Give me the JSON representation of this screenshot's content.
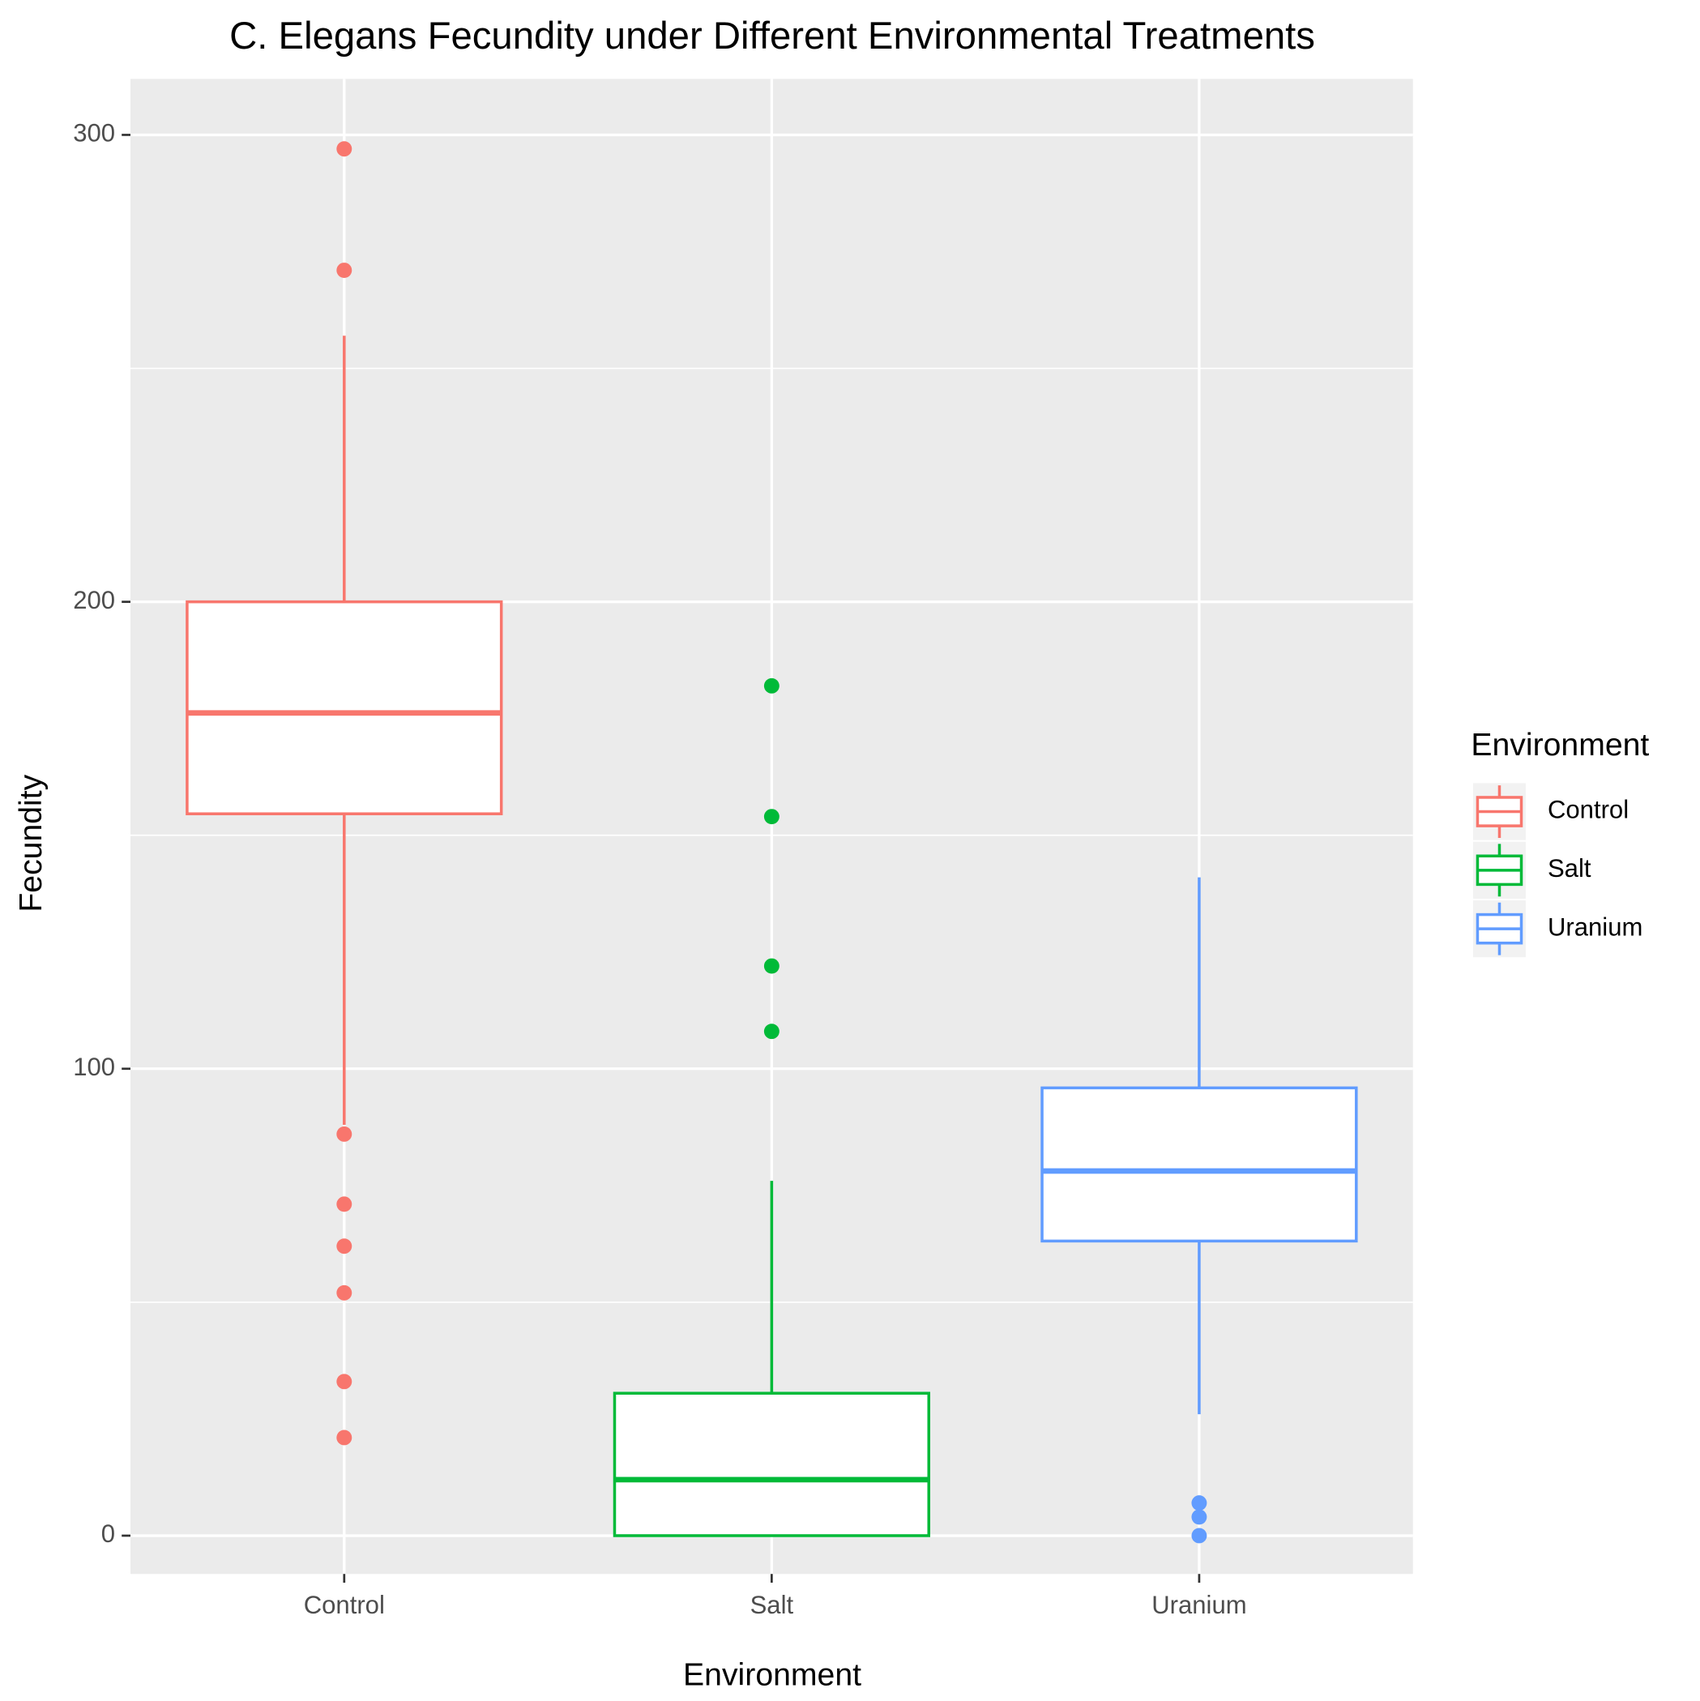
{
  "chart_data": {
    "type": "box",
    "title": "C. Elegans Fecundity under Different Environmental Treatments",
    "x_label": "Environment",
    "y_label": "Fecundity",
    "legend_title": "Environment",
    "legend_position": "right",
    "categories": [
      "Control",
      "Salt",
      "Uranium"
    ],
    "ylim": [
      -8.2,
      312
    ],
    "yticks": [
      0,
      100,
      200,
      300
    ],
    "minor_yticks": [
      50,
      150,
      250
    ],
    "grid": true,
    "series": [
      {
        "name": "Control",
        "color": "#F8766D",
        "whisker_low": 88,
        "q1": 154.6,
        "median": 176.2,
        "q3": 200,
        "whisker_high": 257,
        "outliers": [
          297,
          271,
          86,
          71,
          62,
          52,
          33,
          21
        ]
      },
      {
        "name": "Salt",
        "color": "#00BA38",
        "whisker_low": 0,
        "q1": 0,
        "median": 12,
        "q3": 30.5,
        "whisker_high": 76,
        "outliers": [
          182,
          154,
          122,
          108
        ]
      },
      {
        "name": "Uranium",
        "color": "#619CFF",
        "whisker_low": 26,
        "q1": 63.1,
        "median": 78.1,
        "q3": 95.9,
        "whisker_high": 141,
        "outliers": [
          7,
          4,
          0
        ]
      }
    ]
  }
}
